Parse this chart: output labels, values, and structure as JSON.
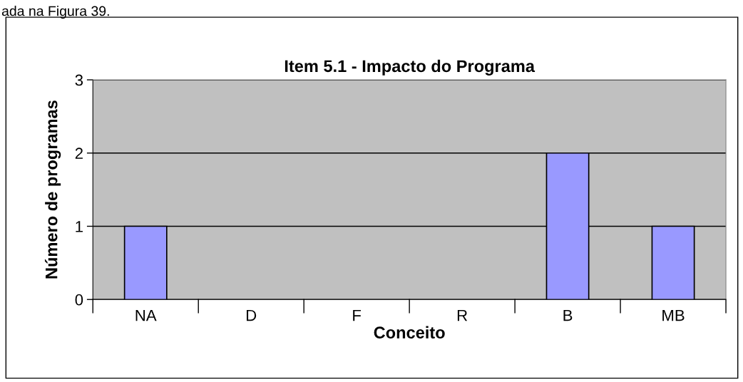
{
  "chart_data": {
    "type": "bar",
    "title": "Item 5.1 - Impacto do Programa",
    "xlabel": "Conceito",
    "ylabel": "Número de programas",
    "annotations": [
      "ada na Figura 39."
    ],
    "categories": [
      "NA",
      "D",
      "F",
      "R",
      "B",
      "MB"
    ],
    "values": [
      1,
      0,
      0,
      0,
      2,
      1
    ],
    "color": "#9999ff",
    "ylim": [
      0,
      3
    ],
    "yticks": [
      0,
      1,
      2,
      3
    ],
    "grid": "y",
    "legend": false
  }
}
